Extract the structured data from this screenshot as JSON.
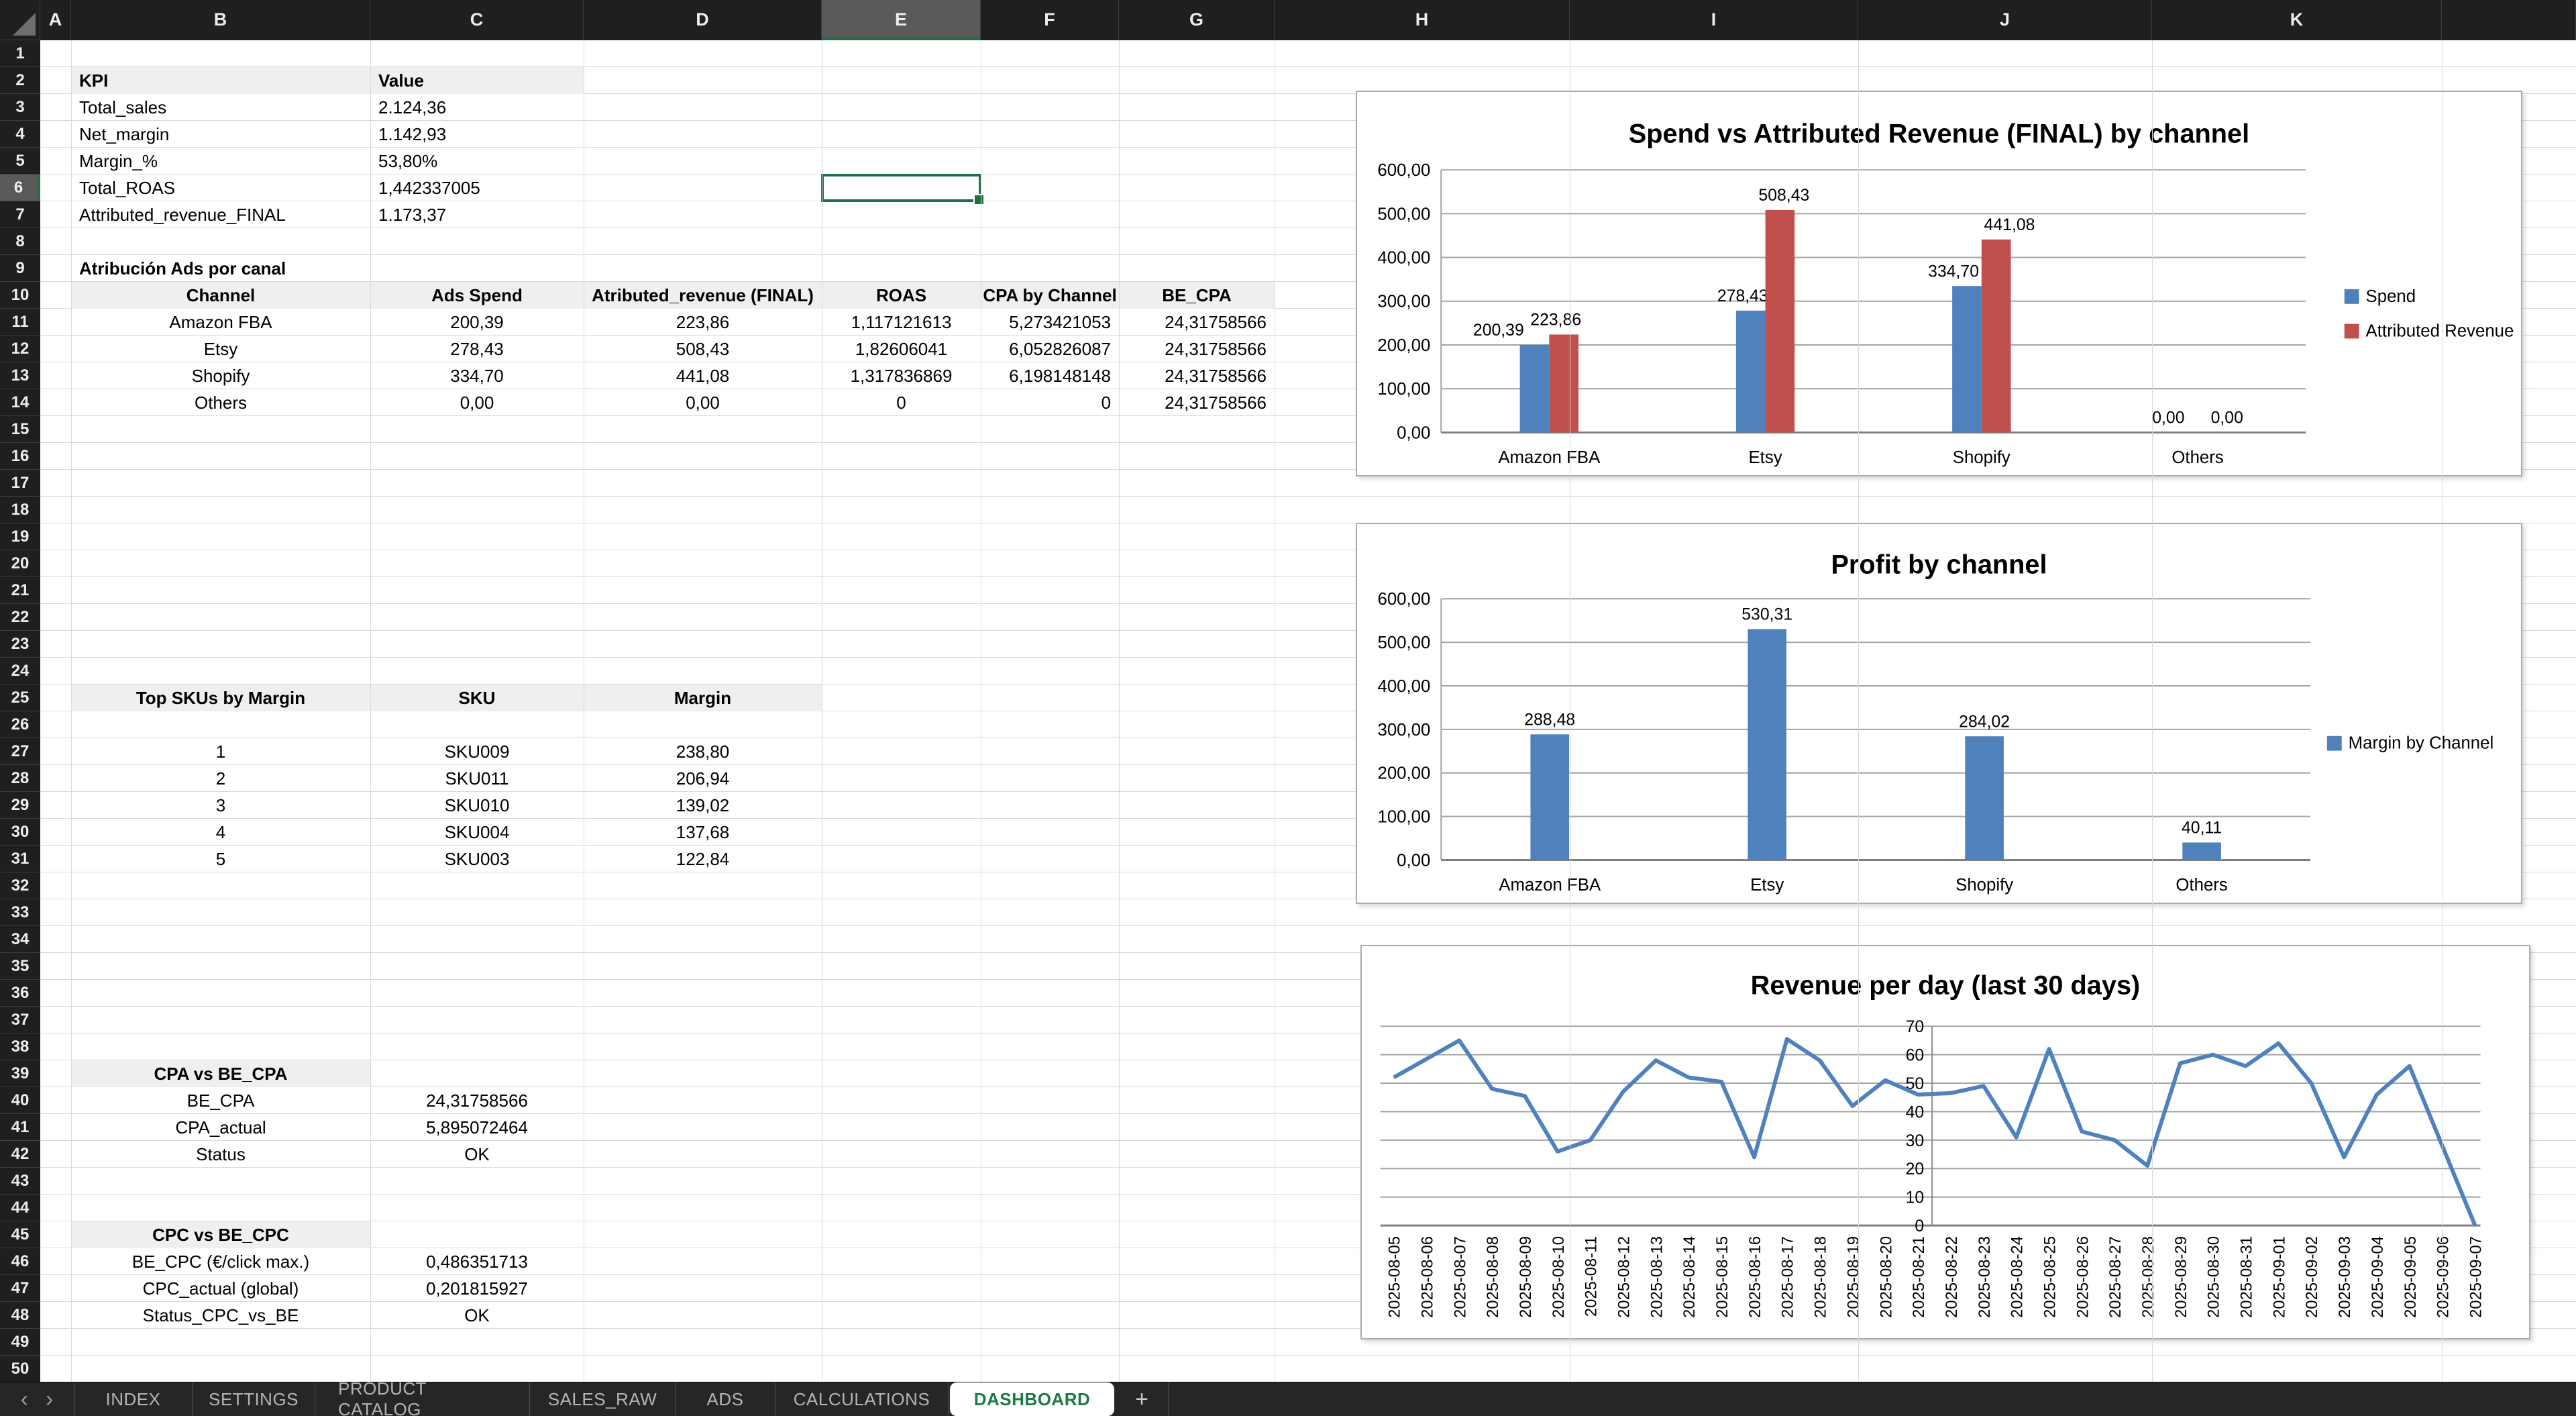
{
  "grid": {
    "column_labels": [
      "A",
      "B",
      "C",
      "D",
      "E",
      "F",
      "G",
      "H",
      "I",
      "J",
      "K"
    ],
    "row_count": 50,
    "selected_cell": {
      "column": "E",
      "row": 6
    }
  },
  "kpi_table": {
    "header": [
      "KPI",
      "Value"
    ],
    "rows": [
      [
        "Total_sales",
        "2.124,36"
      ],
      [
        "Net_margin",
        "1.142,93"
      ],
      [
        "Margin_%",
        "53,80%"
      ],
      [
        "Total_ROAS",
        "1,442337005"
      ],
      [
        "Attributed_revenue_FINAL",
        "1.173,37"
      ]
    ]
  },
  "attribution_table": {
    "title": "Atribución Ads por canal",
    "header": [
      "Channel",
      "Ads Spend",
      "Atributed_revenue (FINAL)",
      "ROAS",
      "CPA by Channel",
      "BE_CPA"
    ],
    "rows": [
      [
        "Amazon FBA",
        "200,39",
        "223,86",
        "1,117121613",
        "5,273421053",
        "24,31758566"
      ],
      [
        "Etsy",
        "278,43",
        "508,43",
        "1,82606041",
        "6,052826087",
        "24,31758566"
      ],
      [
        "Shopify",
        "334,70",
        "441,08",
        "1,317836869",
        "6,198148148",
        "24,31758566"
      ],
      [
        "Others",
        "0,00",
        "0,00",
        "0",
        "0",
        "24,31758566"
      ]
    ]
  },
  "top_skus_table": {
    "header": [
      "Top SKUs by Margin",
      "SKU",
      "Margin"
    ],
    "rows": [
      [
        "1",
        "SKU009",
        "238,80"
      ],
      [
        "2",
        "SKU011",
        "206,94"
      ],
      [
        "3",
        "SKU010",
        "139,02"
      ],
      [
        "4",
        "SKU004",
        "137,68"
      ],
      [
        "5",
        "SKU003",
        "122,84"
      ]
    ]
  },
  "cpa_table": {
    "title": "CPA vs BE_CPA",
    "rows": [
      [
        "BE_CPA",
        "24,31758566"
      ],
      [
        "CPA_actual",
        "5,895072464"
      ],
      [
        "Status",
        "OK"
      ]
    ]
  },
  "cpc_table": {
    "title": "CPC vs BE_CPC",
    "rows": [
      [
        "BE_CPC (€/click max.)",
        "0,486351713"
      ],
      [
        "CPC_actual (global)",
        "0,201815927"
      ],
      [
        "Status_CPC_vs_BE",
        "OK"
      ]
    ]
  },
  "sheet_tabs": {
    "items": [
      "INDEX",
      "SETTINGS",
      "PRODUCT CATALOG",
      "SALES_RAW",
      "ADS",
      "CALCULATIONS",
      "DASHBOARD"
    ],
    "active": "DASHBOARD",
    "add_label": "+",
    "nav_prev": "‹",
    "nav_next": "›"
  },
  "colors": {
    "accent_green": "#1e7145",
    "bar_blue": "#4f81bd",
    "bar_red": "#c0504d",
    "header_dark": "#1f1f1f",
    "tabbar_dark": "#262626",
    "cell_header_fill": "#efefef",
    "chart_gridline": "#a3a3a3"
  },
  "chart_data": [
    {
      "type": "bar",
      "title": "Spend vs Attributed Revenue (FINAL) by channel",
      "categories": [
        "Amazon FBA",
        "Etsy",
        "Shopify",
        "Others"
      ],
      "series": [
        {
          "name": "Spend",
          "color": "#4f81bd",
          "values": [
            200.39,
            278.43,
            334.7,
            0
          ],
          "labels": [
            "200,39",
            "278,43",
            "334,70",
            "0,00"
          ]
        },
        {
          "name": "Attributed Revenue",
          "color": "#c0504d",
          "values": [
            223.86,
            508.43,
            441.08,
            0
          ],
          "labels": [
            "223,86",
            "508,43",
            "441,08",
            "0,00"
          ]
        }
      ],
      "ylim": [
        0,
        600
      ],
      "y_ticks": [
        "0,00",
        "100,00",
        "200,00",
        "300,00",
        "400,00",
        "500,00",
        "600,00"
      ],
      "legend_position": "right",
      "grid": true
    },
    {
      "type": "bar",
      "title": "Profit by channel",
      "categories": [
        "Amazon FBA",
        "Etsy",
        "Shopify",
        "Others"
      ],
      "series": [
        {
          "name": "Margin by Channel",
          "color": "#4f81bd",
          "values": [
            288.48,
            530.31,
            284.02,
            40.11
          ],
          "labels": [
            "288,48",
            "530,31",
            "284,02",
            "40,11"
          ]
        }
      ],
      "ylim": [
        0,
        600
      ],
      "y_ticks": [
        "0,00",
        "100,00",
        "200,00",
        "300,00",
        "400,00",
        "500,00",
        "600,00"
      ],
      "legend_position": "right",
      "grid": true
    },
    {
      "type": "line",
      "title": "Revenue per day (last 30 days)",
      "x": [
        "2025-08-05",
        "2025-08-06",
        "2025-08-07",
        "2025-08-08",
        "2025-08-09",
        "2025-08-10",
        "2025-08-11",
        "2025-08-12",
        "2025-08-13",
        "2025-08-14",
        "2025-08-15",
        "2025-08-16",
        "2025-08-17",
        "2025-08-18",
        "2025-08-19",
        "2025-08-20",
        "2025-08-21",
        "2025-08-22",
        "2025-08-23",
        "2025-08-24",
        "2025-08-25",
        "2025-08-26",
        "2025-08-27",
        "2025-08-28",
        "2025-08-29",
        "2025-08-30",
        "2025-08-31",
        "2025-09-01",
        "2025-09-02",
        "2025-09-03",
        "2025-09-04",
        "2025-09-05",
        "2025-09-06",
        "2025-09-07"
      ],
      "values": [
        52,
        58.5,
        65,
        48,
        45.5,
        26,
        30,
        47,
        58,
        52,
        50.5,
        24,
        65.5,
        58,
        42,
        51,
        46,
        46.5,
        49,
        31,
        62,
        33,
        30,
        21,
        57,
        60,
        56,
        64,
        50,
        24,
        46,
        56,
        28,
        0
      ],
      "line_color": "#4f81bd",
      "ylim": [
        0,
        70
      ],
      "y_ticks": [
        "0",
        "10",
        "20",
        "30",
        "40",
        "50",
        "60",
        "70"
      ],
      "legend_position": "none",
      "grid": true
    }
  ]
}
